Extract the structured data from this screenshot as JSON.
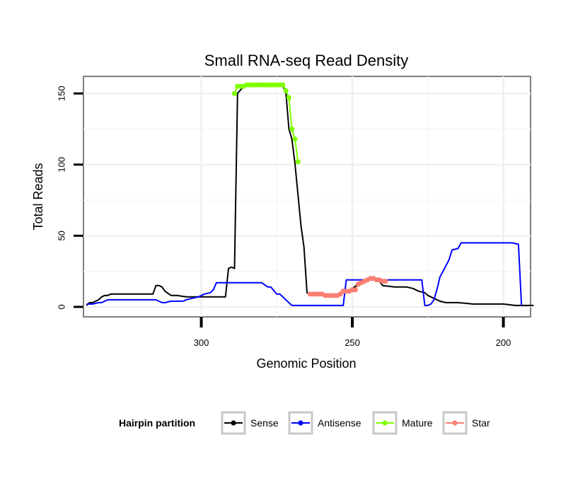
{
  "chart_data": {
    "type": "line",
    "title": "Small RNA-seq Read Density",
    "xlabel": "Genomic Position",
    "ylabel": "Total Reads",
    "x_reversed": true,
    "xlim": [
      339,
      191
    ],
    "ylim": [
      -7,
      162
    ],
    "x_ticks": [
      300,
      250,
      200
    ],
    "y_ticks": [
      0,
      50,
      100,
      150
    ],
    "grid": true,
    "legend_title": "Hairpin partition",
    "legend_position": "bottom",
    "series": [
      {
        "name": "Sense",
        "color": "#000000",
        "marker": false,
        "x": [
          338,
          337,
          336,
          335,
          334,
          333,
          332,
          331,
          330,
          325,
          320,
          317,
          316,
          315,
          314,
          313,
          312,
          310,
          308,
          305,
          300,
          295,
          292,
          291,
          290,
          289,
          288,
          286,
          284,
          282,
          280,
          278,
          276,
          274,
          273,
          272,
          271,
          270,
          269,
          267,
          266,
          265,
          264,
          262,
          260,
          258,
          256,
          254,
          252,
          250,
          248,
          246,
          244,
          242,
          241,
          240,
          236,
          232,
          230,
          228,
          226,
          225,
          223,
          221,
          219,
          217,
          215,
          210,
          205,
          200,
          196,
          195,
          190
        ],
        "y": [
          1,
          3,
          3,
          4,
          5,
          7,
          8,
          8,
          9,
          9,
          9,
          9,
          9,
          15,
          15,
          14,
          11,
          8,
          8,
          7,
          7,
          7,
          7,
          27,
          28,
          27,
          150,
          155,
          156,
          156,
          156,
          156,
          156,
          156,
          155,
          151,
          125,
          118,
          101,
          57,
          42,
          10,
          9,
          8,
          8,
          8,
          8,
          9,
          11,
          13,
          16,
          19,
          20,
          19,
          18,
          15,
          14,
          14,
          13,
          11,
          10,
          8,
          6,
          4,
          3,
          3,
          3,
          2,
          2,
          2,
          1,
          1,
          1
        ]
      },
      {
        "name": "Antisense",
        "color": "#0000ff",
        "marker": false,
        "x": [
          338,
          336,
          334,
          333,
          331,
          320,
          315,
          313,
          312,
          310,
          308,
          306,
          305,
          303,
          301,
          299,
          297,
          296,
          295,
          292,
          290,
          288,
          286,
          285,
          280,
          278,
          277,
          275,
          274,
          270,
          268,
          267,
          265,
          260,
          258,
          256,
          254,
          253,
          252,
          251,
          250,
          248,
          246,
          244,
          238,
          230,
          227,
          226,
          225,
          224,
          223,
          222,
          221,
          218,
          217,
          215,
          214,
          210,
          206,
          202,
          198,
          197,
          195,
          194
        ],
        "y": [
          2,
          2,
          3,
          3,
          5,
          5,
          5,
          3,
          3,
          4,
          4,
          4,
          5,
          6,
          7,
          9,
          10,
          12,
          17,
          17,
          17,
          17,
          17,
          17,
          17,
          14,
          14,
          9,
          9,
          1,
          1,
          1,
          1,
          1,
          1,
          1,
          1,
          1,
          19,
          19,
          19,
          19,
          19,
          19,
          19,
          19,
          19,
          1,
          1,
          2,
          5,
          12,
          21,
          33,
          40,
          41,
          45,
          45,
          45,
          45,
          45,
          45,
          44,
          1
        ]
      },
      {
        "name": "Mature",
        "color": "#7fff00",
        "marker": true,
        "x": [
          289,
          288,
          287,
          286,
          285,
          284,
          283,
          282,
          281,
          280,
          279,
          278,
          277,
          276,
          275,
          274,
          273,
          272,
          271,
          270,
          269,
          268
        ],
        "y": [
          150,
          155,
          155,
          155,
          156,
          156,
          156,
          156,
          156,
          156,
          156,
          156,
          156,
          156,
          156,
          156,
          156,
          152,
          147,
          125,
          118,
          102
        ]
      },
      {
        "name": "Star",
        "color": "#fa8072",
        "marker": true,
        "x": [
          264,
          263,
          262,
          261,
          260,
          259,
          258,
          257,
          256,
          255,
          254,
          253,
          252,
          251,
          250,
          249,
          248,
          247,
          246,
          245,
          244,
          243,
          242,
          241,
          240,
          239
        ],
        "y": [
          9,
          9,
          9,
          9,
          9,
          8,
          8,
          8,
          8,
          8,
          9,
          11,
          11,
          11,
          12,
          12,
          16,
          17,
          18,
          19,
          20,
          20,
          19,
          19,
          18,
          18
        ]
      }
    ]
  }
}
